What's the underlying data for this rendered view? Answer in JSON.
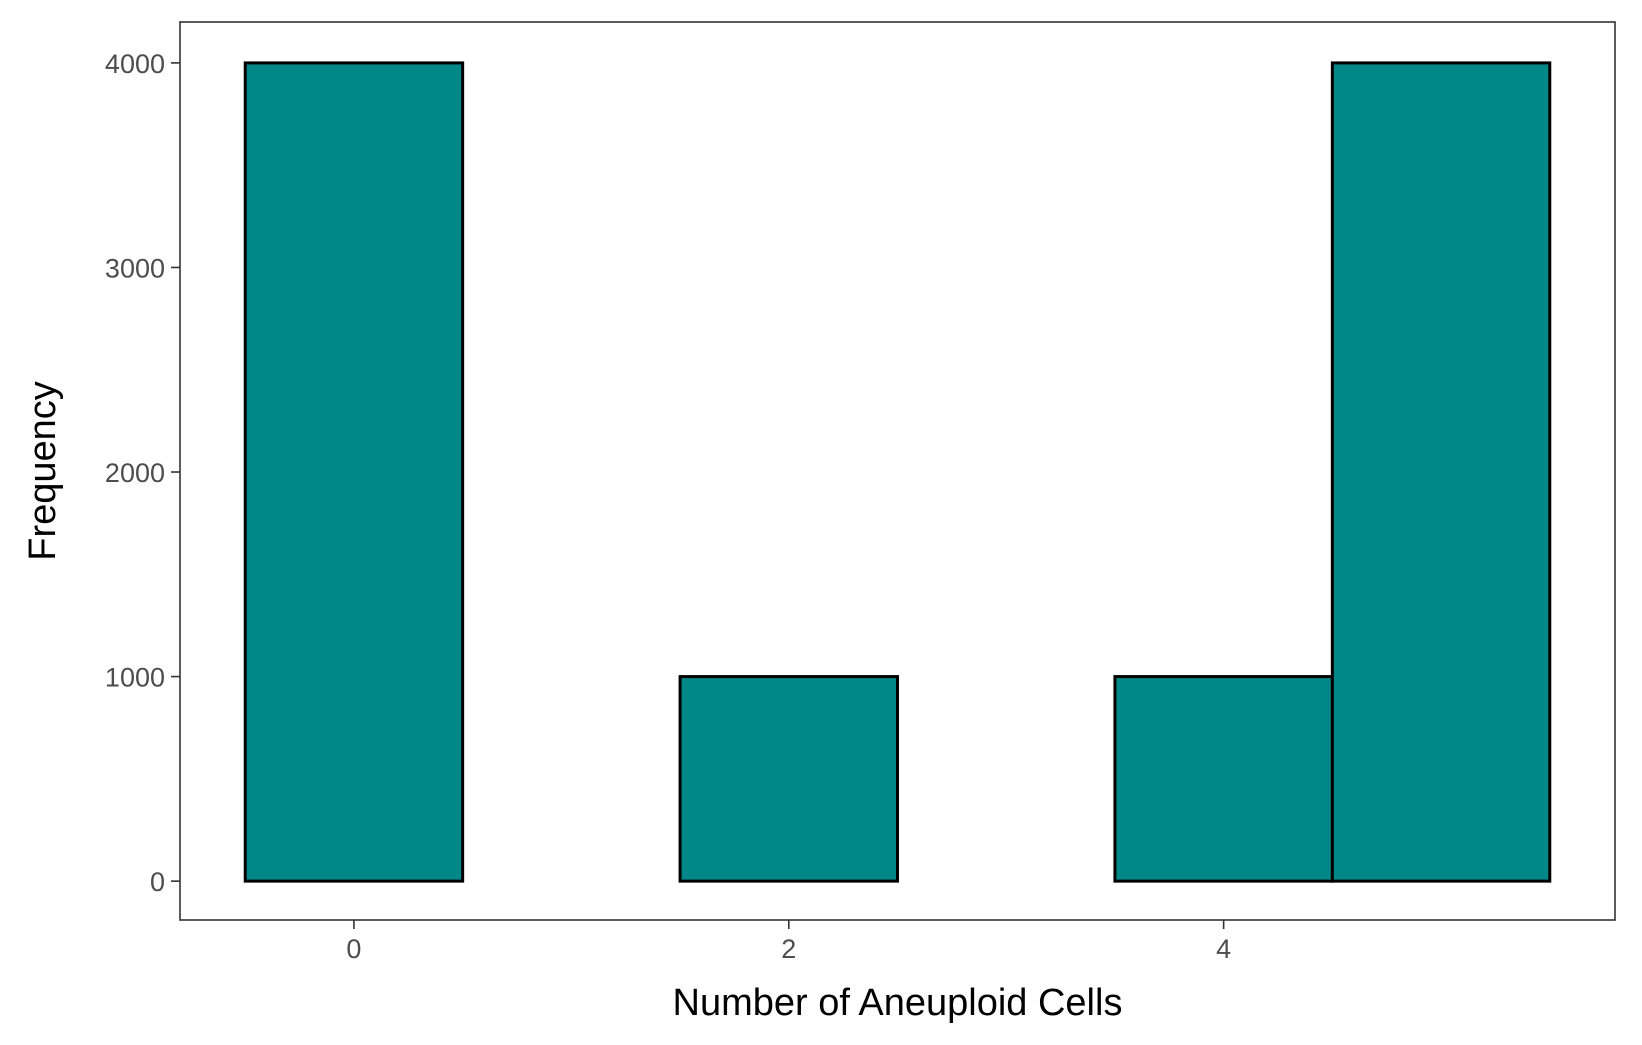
{
  "chart_data": {
    "type": "bar",
    "x": [
      0,
      1,
      2,
      3,
      4,
      5
    ],
    "values": [
      4000,
      0,
      1000,
      0,
      1000,
      4000
    ],
    "bin_width": 1,
    "xlabel": "Number of Aneuploid Cells",
    "ylabel": "Frequency",
    "xlim": [
      -0.8,
      5.8
    ],
    "ylim": [
      -190,
      4200
    ],
    "x_ticks": [
      0,
      2,
      4
    ],
    "y_ticks": [
      0,
      1000,
      2000,
      3000,
      4000
    ],
    "grid": false,
    "colors": {
      "bar_fill": "#008888",
      "bar_stroke": "#000000",
      "panel_border": "#333333",
      "tick": "#333333"
    }
  }
}
